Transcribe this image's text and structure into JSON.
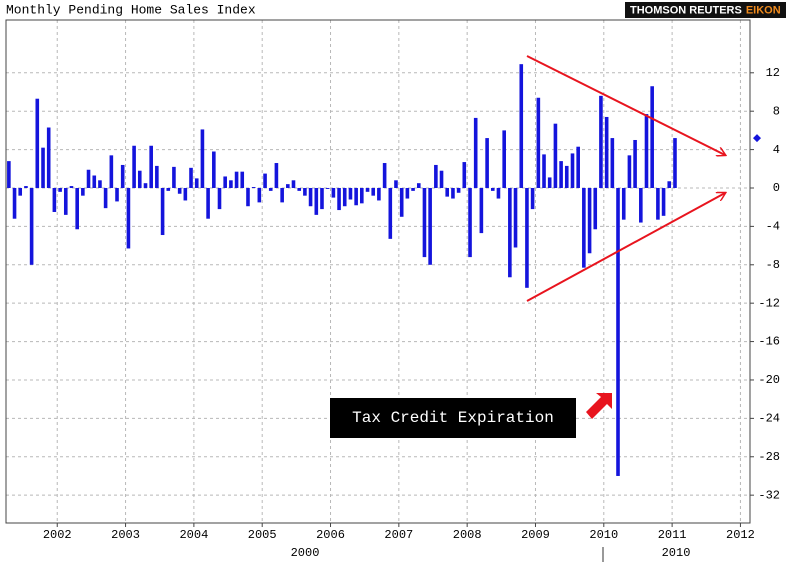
{
  "chart_data": {
    "type": "bar",
    "title": "Monthly Pending Home Sales Index",
    "branding": [
      "THOMSON REUTERS",
      "EIKON"
    ],
    "annotation": "Tax Credit Expiration",
    "lower_axis_labels": [
      "2000",
      "2010"
    ],
    "color": "#1414dc",
    "grid": true,
    "x": [
      2001.292,
      2001.375,
      2001.458,
      2001.542,
      2001.625,
      2001.708,
      2001.792,
      2001.875,
      2001.958,
      2002.042,
      2002.125,
      2002.208,
      2002.292,
      2002.375,
      2002.458,
      2002.542,
      2002.625,
      2002.708,
      2002.792,
      2002.875,
      2002.958,
      2003.042,
      2003.125,
      2003.208,
      2003.292,
      2003.375,
      2003.458,
      2003.542,
      2003.625,
      2003.708,
      2003.792,
      2003.875,
      2003.958,
      2004.042,
      2004.125,
      2004.208,
      2004.292,
      2004.375,
      2004.458,
      2004.542,
      2004.625,
      2004.708,
      2004.792,
      2004.875,
      2004.958,
      2005.042,
      2005.125,
      2005.208,
      2005.292,
      2005.375,
      2005.458,
      2005.542,
      2005.625,
      2005.708,
      2005.792,
      2005.875,
      2005.958,
      2006.042,
      2006.125,
      2006.208,
      2006.292,
      2006.375,
      2006.458,
      2006.542,
      2006.625,
      2006.708,
      2006.792,
      2006.875,
      2006.958,
      2007.042,
      2007.125,
      2007.208,
      2007.292,
      2007.375,
      2007.458,
      2007.542,
      2007.625,
      2007.708,
      2007.792,
      2007.875,
      2007.958,
      2008.042,
      2008.125,
      2008.208,
      2008.292,
      2008.375,
      2008.458,
      2008.542,
      2008.625,
      2008.708,
      2008.792,
      2008.875,
      2008.958,
      2009.042,
      2009.125,
      2009.208,
      2009.292,
      2009.375,
      2009.458,
      2009.542,
      2009.625,
      2009.708,
      2009.792,
      2009.875,
      2009.958,
      2010.042,
      2010.125,
      2010.208,
      2010.292,
      2010.375,
      2010.458,
      2010.542,
      2010.625,
      2010.708,
      2010.792,
      2010.875,
      2010.958,
      2011.042
    ],
    "values": [
      2.8,
      -3.2,
      -0.8,
      0.2,
      -8,
      9.3,
      4.2,
      6.3,
      -2.5,
      -0.4,
      -2.8,
      0.2,
      -4.3,
      -0.8,
      1.9,
      1.3,
      0.8,
      -2.1,
      3.4,
      -1.4,
      2.4,
      -6.3,
      4.4,
      1.8,
      0.5,
      4.4,
      2.3,
      -4.9,
      -0.3,
      2.2,
      -0.6,
      -1.3,
      2.1,
      1.0,
      6.1,
      -3.2,
      3.8,
      -2.2,
      1.2,
      0.8,
      1.7,
      1.7,
      -1.9,
      0.1,
      -1.5,
      1.5,
      -0.3,
      2.6,
      -1.5,
      0.4,
      0.8,
      -0.3,
      -0.8,
      -1.9,
      -2.8,
      -2.2,
      -0.1,
      -1.0,
      -2.3,
      -1.9,
      -1.2,
      -1.8,
      -1.6,
      -0.4,
      -0.8,
      -1.3,
      2.6,
      -5.3,
      0.8,
      -3.0,
      -1.1,
      -0.3,
      0.5,
      -7.2,
      -8.0,
      2.4,
      1.8,
      -0.9,
      -1.1,
      -0.5,
      2.7,
      -7.2,
      7.3,
      -4.7,
      5.2,
      -0.3,
      -1.1,
      6.0,
      -9.3,
      -6.2,
      12.9,
      -10.4,
      -2.2,
      9.4,
      3.5,
      1.1,
      6.7,
      2.8,
      2.3,
      3.6,
      4.3,
      -8.3,
      -6.8,
      -4.3,
      9.6,
      7.4,
      5.2,
      -30,
      -3.3,
      3.4,
      5.0,
      -3.6,
      7.7,
      10.6,
      -3.3,
      -2.9,
      0.7,
      5.2
    ],
    "xlim": [
      2001.25,
      2012.14
    ],
    "xticks": [
      2002,
      2003,
      2004,
      2005,
      2006,
      2007,
      2008,
      2009,
      2010,
      2011,
      2012
    ],
    "ylim": [
      -34.9,
      17.5
    ],
    "yticks": [
      12,
      8,
      4,
      0,
      -4,
      -8,
      -12,
      -16,
      -20,
      -24,
      -28,
      -32
    ]
  }
}
